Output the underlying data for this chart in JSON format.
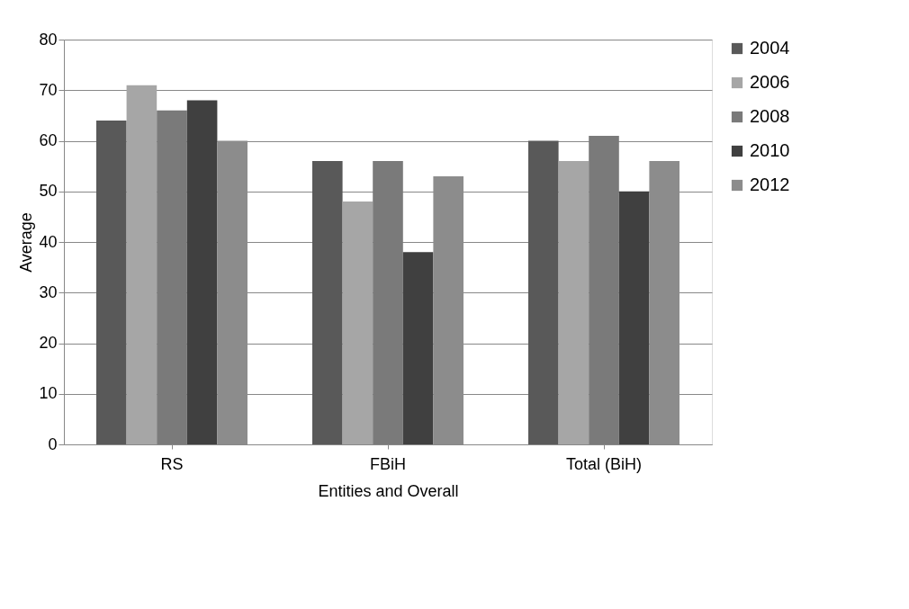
{
  "chart_data": {
    "type": "bar",
    "xlabel": "Entities and Overall",
    "ylabel": "Average",
    "categories": [
      "RS",
      "FBiH",
      "Total (BiH)"
    ],
    "series": [
      {
        "name": "2004",
        "color": "#595959",
        "values": [
          64,
          56,
          60
        ]
      },
      {
        "name": "2006",
        "color": "#a6a6a6",
        "values": [
          71,
          48,
          56
        ]
      },
      {
        "name": "2008",
        "color": "#7a7a7a",
        "values": [
          66,
          56,
          61
        ]
      },
      {
        "name": "2010",
        "color": "#404040",
        "values": [
          68,
          38,
          50
        ]
      },
      {
        "name": "2012",
        "color": "#8c8c8c",
        "values": [
          60,
          53,
          56
        ]
      }
    ],
    "ylim": [
      0,
      80
    ],
    "yticks": [
      0,
      10,
      20,
      30,
      40,
      50,
      60,
      70,
      80
    ],
    "grid": "y",
    "legend": "right"
  }
}
